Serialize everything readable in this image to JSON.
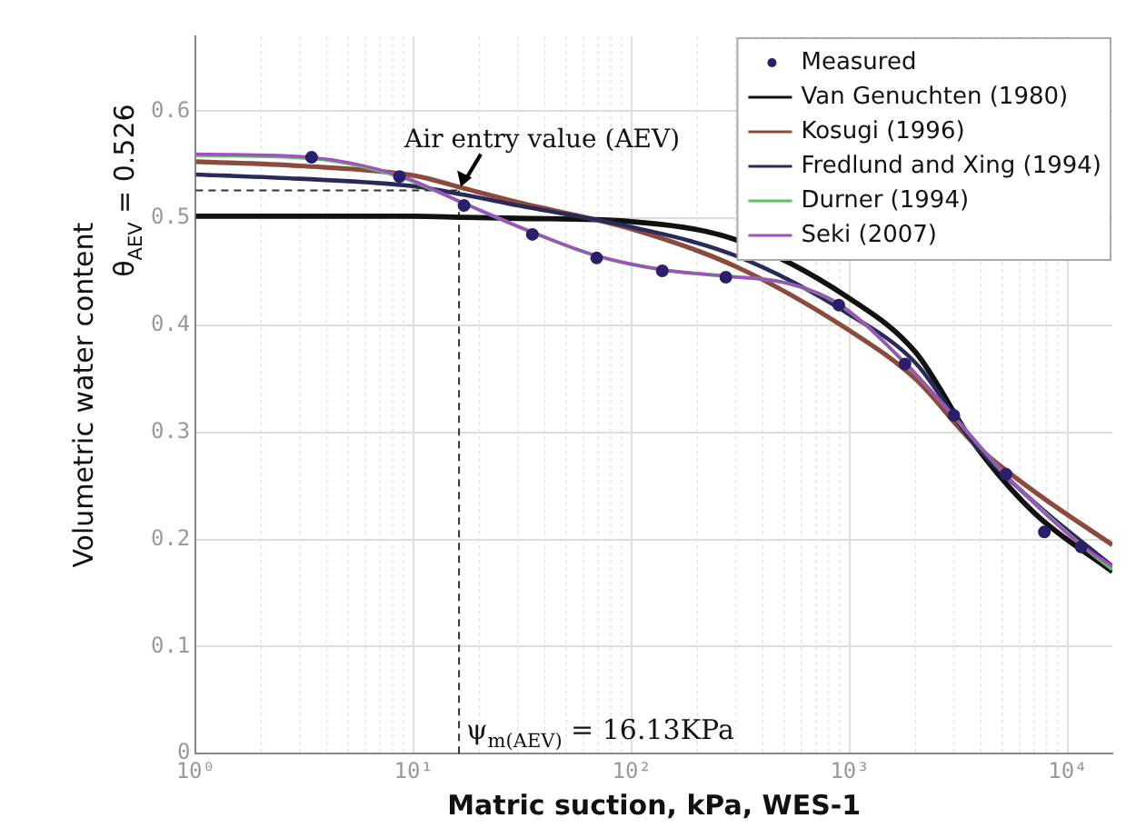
{
  "chart_data": {
    "type": "line",
    "xlabel": "Matric suction, kPa, WES-1",
    "ylabel": "Volumetric water content",
    "log": "x",
    "grid": true,
    "legend": "top right",
    "line_style": "solid",
    "xlim": [
      1,
      16000
    ],
    "xticks": [
      {
        "value": 1,
        "label": "10⁰"
      },
      {
        "value": 10,
        "label": "10¹"
      },
      {
        "value": 100,
        "label": "10²"
      },
      {
        "value": 1000,
        "label": "10³"
      },
      {
        "value": 10000,
        "label": "10⁴"
      }
    ],
    "ylim": [
      0,
      0.67
    ],
    "yticks": [
      0,
      0.1,
      0.2,
      0.3,
      0.4,
      0.5,
      0.6
    ],
    "series": [
      {
        "name": "Measured",
        "type": "scatter",
        "marker": "circle",
        "color": "#2a1f6b",
        "x": [
          3.4,
          8.6,
          17,
          35,
          69,
          138,
          270,
          890,
          1790,
          3000,
          5200,
          7800,
          11500
        ],
        "values": [
          0.557,
          0.539,
          0.512,
          0.485,
          0.463,
          0.451,
          0.445,
          0.419,
          0.364,
          0.316,
          0.261,
          0.207,
          0.193
        ]
      },
      {
        "name": "Van Genuchten (1980)",
        "color": "#111111",
        "x": [
          1,
          3,
          10,
          17,
          30,
          100,
          300,
          1000,
          2000,
          3700,
          7000,
          16000
        ],
        "values": [
          0.502,
          0.502,
          0.502,
          0.501,
          0.5,
          0.497,
          0.48,
          0.425,
          0.375,
          0.29,
          0.225,
          0.17
        ]
      },
      {
        "name": "Kosugi (1996)",
        "color": "#8b4a3c",
        "x": [
          1,
          3,
          10,
          17,
          30,
          100,
          300,
          1000,
          2000,
          3700,
          7000,
          16000
        ],
        "values": [
          0.553,
          0.549,
          0.54,
          0.528,
          0.515,
          0.49,
          0.455,
          0.395,
          0.35,
          0.29,
          0.245,
          0.195
        ]
      },
      {
        "name": "Fredlund and Xing (1994)",
        "color": "#2a2a5a",
        "x": [
          1,
          3,
          10,
          17,
          30,
          100,
          300,
          1000,
          2000,
          3700,
          7000,
          16000
        ],
        "values": [
          0.541,
          0.537,
          0.53,
          0.522,
          0.512,
          0.492,
          0.465,
          0.41,
          0.365,
          0.29,
          0.235,
          0.175
        ]
      },
      {
        "name": "Durner (1994)",
        "color": "#5cc45c",
        "x": [
          1,
          3.4,
          8.6,
          17,
          35,
          69,
          138,
          270,
          500,
          890,
          1790,
          3000,
          5200,
          11500,
          16000
        ],
        "values": [
          0.559,
          0.556,
          0.539,
          0.514,
          0.487,
          0.465,
          0.452,
          0.446,
          0.44,
          0.42,
          0.365,
          0.315,
          0.26,
          0.195,
          0.172
        ]
      },
      {
        "name": "Seki (2007)",
        "color": "#a050c0",
        "x": [
          1,
          3.4,
          8.6,
          17,
          35,
          69,
          138,
          270,
          500,
          890,
          1790,
          3000,
          5200,
          11500,
          16000
        ],
        "values": [
          0.56,
          0.557,
          0.54,
          0.514,
          0.487,
          0.465,
          0.452,
          0.446,
          0.44,
          0.42,
          0.365,
          0.315,
          0.26,
          0.195,
          0.175
        ]
      }
    ],
    "ref_lines": [
      {
        "axis": "y",
        "value": 0.526,
        "label": "θ$_{AEV}$ = 0.526",
        "line_style": "dashed",
        "color": "#333333"
      },
      {
        "axis": "x",
        "value": 16.13,
        "label": "ψ$_{m(AEV)}$ = 16.13KPa",
        "line_style": "dashed",
        "color": "#333333"
      }
    ],
    "annotations": [
      {
        "text": "Air entry value (AEV)",
        "x": 16.13,
        "y": 0.526
      }
    ]
  }
}
